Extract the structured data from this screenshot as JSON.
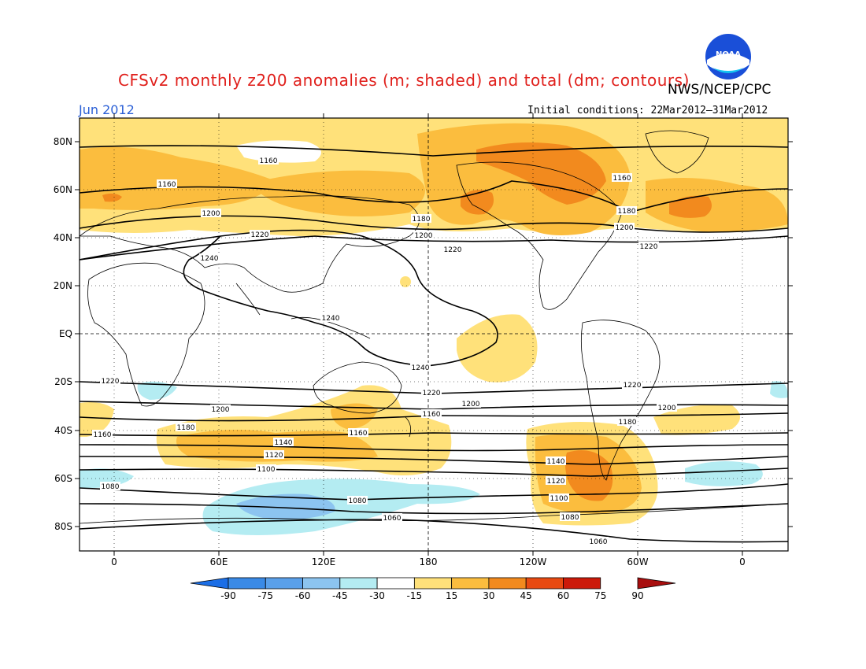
{
  "title": "CFSv2 monthly z200 anomalies (m; shaded) and total (dm; contours)",
  "agency": "NWS/NCEP/CPC",
  "month": "Jun 2012",
  "initial_conditions": "Initial conditions: 22Mar2012–31Mar2012",
  "logo": {
    "text": "NOAA",
    "icon": "noaa-logo-icon"
  },
  "map": {
    "lat_labels": [
      "80N",
      "60N",
      "40N",
      "20N",
      "EQ",
      "20S",
      "40S",
      "60S",
      "80S"
    ],
    "lon_labels": [
      "0",
      "60E",
      "120E",
      "180",
      "120W",
      "60W",
      "0"
    ],
    "contour_labels": [
      "1160",
      "1160",
      "1160",
      "1180",
      "1180",
      "1200",
      "1200",
      "1200",
      "1220",
      "1220",
      "1220",
      "1240",
      "1240",
      "1240",
      "1220",
      "1220",
      "1220",
      "1200",
      "1200",
      "1200",
      "1180",
      "1180",
      "1160",
      "1160",
      "1160",
      "1140",
      "1140",
      "1120",
      "1120",
      "1100",
      "1100",
      "1080",
      "1080",
      "1080",
      "1060",
      "1060"
    ]
  },
  "colorbar": {
    "labels": [
      "-90",
      "-75",
      "-60",
      "-45",
      "-30",
      "-15",
      "15",
      "30",
      "45",
      "60",
      "75",
      "90"
    ],
    "colors": [
      "#1b6ee6",
      "#3a8ae6",
      "#5aa0ea",
      "#8cc4f0",
      "#b4ecf2",
      "#ffffff",
      "#ffe17a",
      "#fbbd3e",
      "#f28a1e",
      "#e84a12",
      "#cc1a0a",
      "#a80e0e"
    ]
  }
}
